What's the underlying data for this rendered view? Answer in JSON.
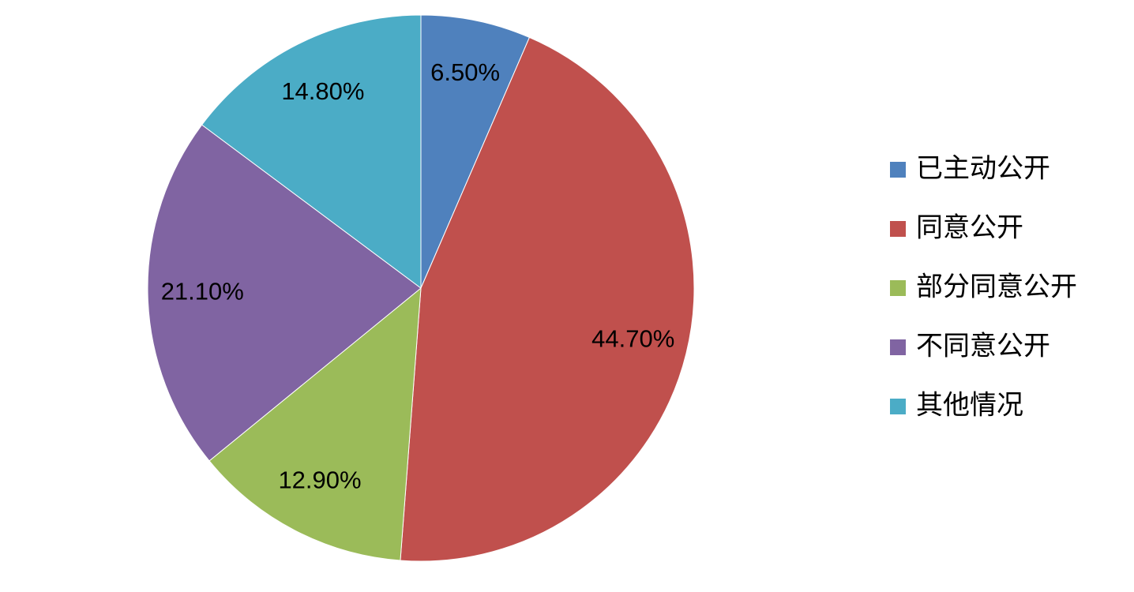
{
  "chart_data": {
    "type": "pie",
    "categories": [
      "已主动公开",
      "同意公开",
      "部分同意公开",
      "不同意公开",
      "其他情况"
    ],
    "values": [
      6.5,
      44.7,
      12.9,
      21.1,
      14.8
    ],
    "value_labels": [
      "6.50%",
      "44.70%",
      "12.90%",
      "21.10%",
      "14.80%"
    ],
    "colors": [
      "#4f81bd",
      "#c0504d",
      "#9bbb59",
      "#8064a2",
      "#4bacc6"
    ],
    "legend": "right"
  }
}
